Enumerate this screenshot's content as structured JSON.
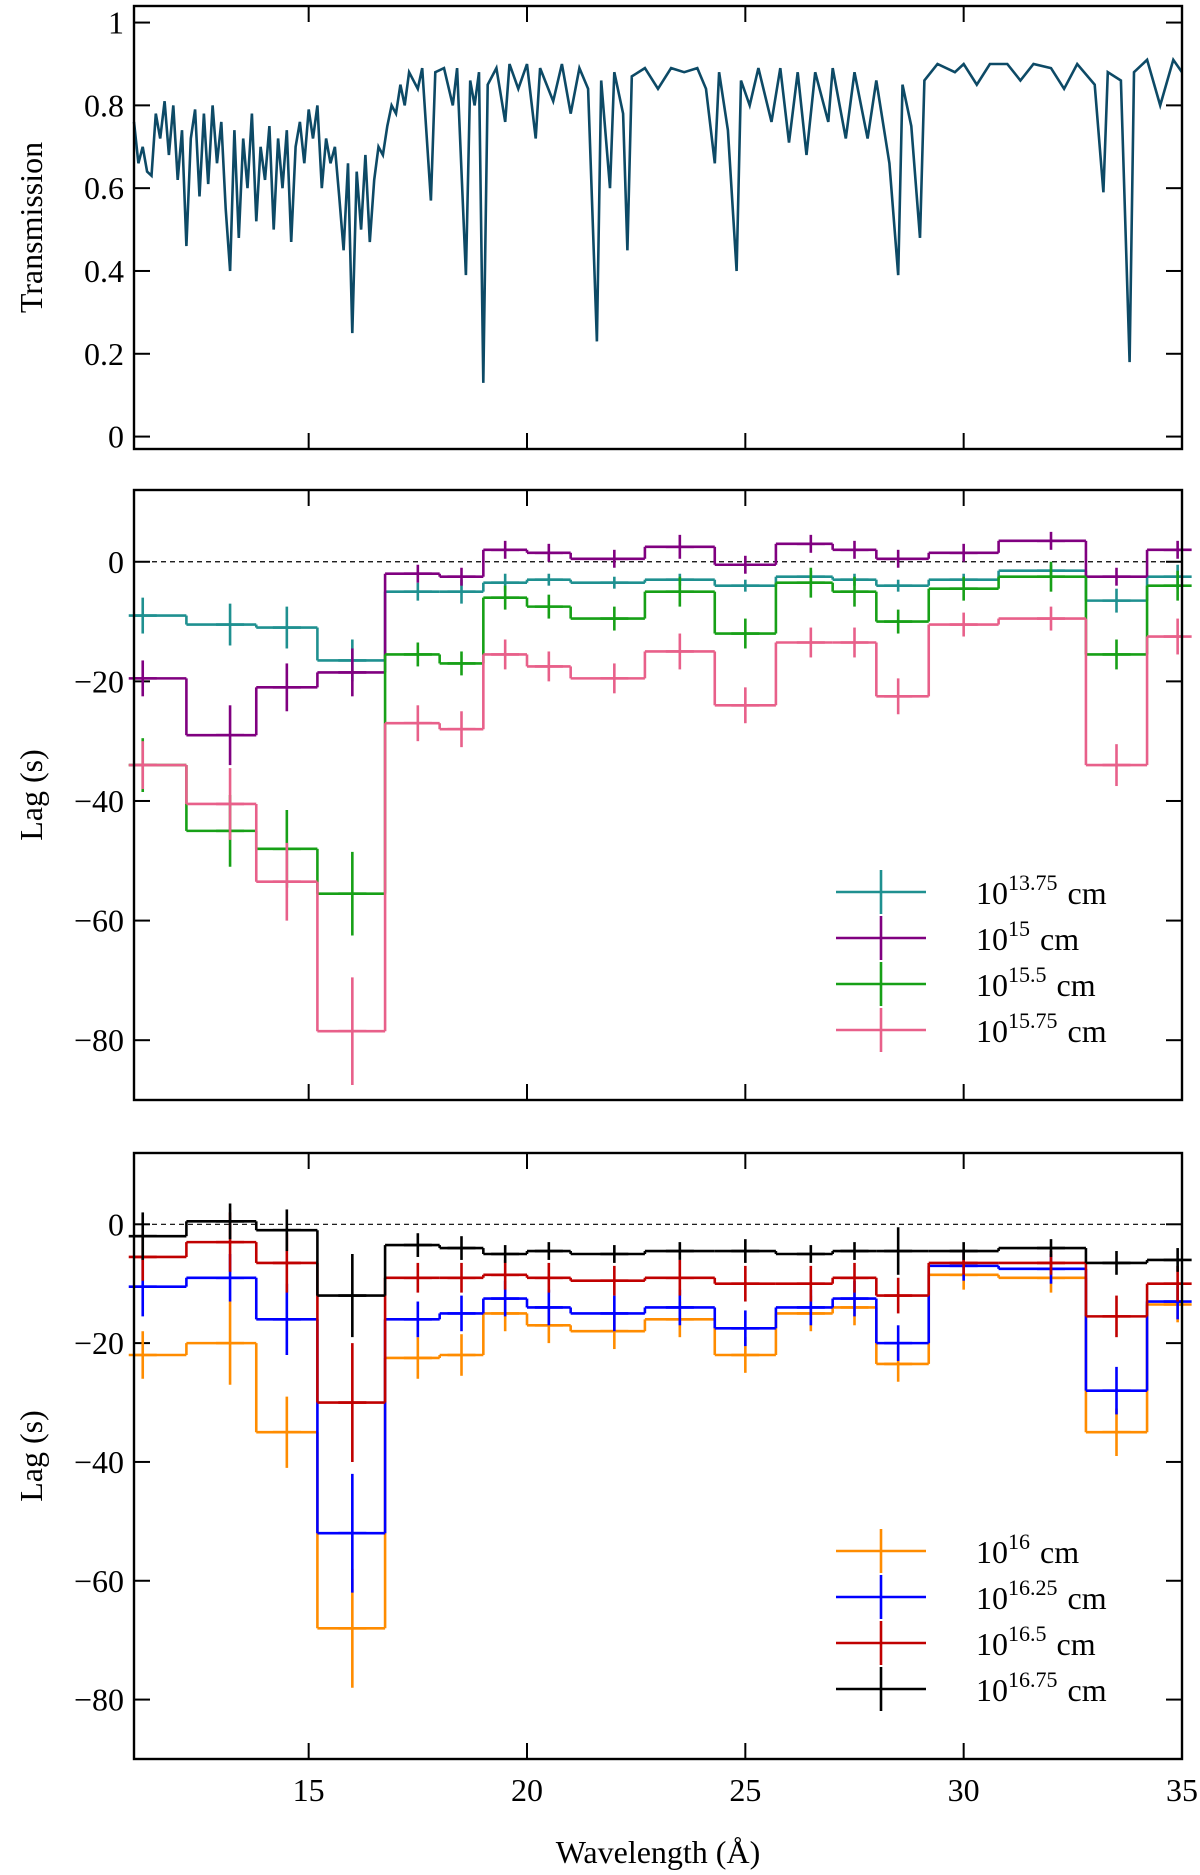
{
  "chart_data": [
    {
      "type": "line",
      "ylabel": "Transmission",
      "color": "#0d4a66",
      "xlim": [
        11,
        35
      ],
      "xticks": [
        15,
        20,
        25,
        30,
        35
      ],
      "ylim": [
        -0.03,
        1.04
      ],
      "yticks": [
        0,
        0.2,
        0.4,
        0.6,
        0.8,
        1
      ],
      "x": [
        11.0,
        11.1,
        11.2,
        11.3,
        11.4,
        11.5,
        11.6,
        11.7,
        11.8,
        11.9,
        12.0,
        12.1,
        12.2,
        12.3,
        12.4,
        12.5,
        12.6,
        12.7,
        12.8,
        12.9,
        13.0,
        13.1,
        13.2,
        13.3,
        13.4,
        13.5,
        13.6,
        13.7,
        13.8,
        13.9,
        14.0,
        14.1,
        14.2,
        14.3,
        14.4,
        14.5,
        14.6,
        14.7,
        14.8,
        14.9,
        15.0,
        15.1,
        15.2,
        15.3,
        15.4,
        15.5,
        15.6,
        15.7,
        15.8,
        15.9,
        16.0,
        16.1,
        16.2,
        16.3,
        16.4,
        16.5,
        16.6,
        16.7,
        16.8,
        16.9,
        17.0,
        17.1,
        17.2,
        17.3,
        17.5,
        17.6,
        17.8,
        17.9,
        18.1,
        18.3,
        18.4,
        18.6,
        18.7,
        18.8,
        18.9,
        19.0,
        19.1,
        19.3,
        19.5,
        19.6,
        19.8,
        20.0,
        20.2,
        20.3,
        20.6,
        20.8,
        21.0,
        21.2,
        21.4,
        21.6,
        21.7,
        21.9,
        22.0,
        22.2,
        22.3,
        22.4,
        22.7,
        23.0,
        23.3,
        23.6,
        23.9,
        24.1,
        24.3,
        24.4,
        24.6,
        24.8,
        24.9,
        25.1,
        25.3,
        25.6,
        25.8,
        26.0,
        26.2,
        26.4,
        26.6,
        26.9,
        27.0,
        27.3,
        27.5,
        27.8,
        28.0,
        28.3,
        28.5,
        28.6,
        28.8,
        29.0,
        29.1,
        29.4,
        29.8,
        30.0,
        30.3,
        30.6,
        31.0,
        31.3,
        31.6,
        32.0,
        32.3,
        32.6,
        33.0,
        33.2,
        33.3,
        33.6,
        33.8,
        33.9,
        34.2,
        34.5,
        34.8,
        35.0
      ],
      "values": [
        0.76,
        0.66,
        0.7,
        0.64,
        0.63,
        0.78,
        0.72,
        0.81,
        0.68,
        0.8,
        0.62,
        0.74,
        0.46,
        0.72,
        0.79,
        0.58,
        0.78,
        0.61,
        0.8,
        0.66,
        0.76,
        0.55,
        0.4,
        0.74,
        0.48,
        0.72,
        0.6,
        0.78,
        0.52,
        0.7,
        0.62,
        0.75,
        0.5,
        0.72,
        0.6,
        0.74,
        0.47,
        0.7,
        0.76,
        0.66,
        0.79,
        0.72,
        0.8,
        0.6,
        0.72,
        0.66,
        0.7,
        0.58,
        0.45,
        0.66,
        0.25,
        0.64,
        0.5,
        0.68,
        0.47,
        0.62,
        0.7,
        0.68,
        0.75,
        0.8,
        0.78,
        0.85,
        0.8,
        0.88,
        0.84,
        0.89,
        0.57,
        0.88,
        0.89,
        0.8,
        0.89,
        0.39,
        0.86,
        0.8,
        0.88,
        0.13,
        0.85,
        0.89,
        0.76,
        0.9,
        0.84,
        0.9,
        0.72,
        0.89,
        0.81,
        0.9,
        0.78,
        0.89,
        0.84,
        0.23,
        0.86,
        0.6,
        0.88,
        0.78,
        0.45,
        0.87,
        0.89,
        0.84,
        0.89,
        0.88,
        0.89,
        0.84,
        0.66,
        0.88,
        0.74,
        0.4,
        0.86,
        0.8,
        0.89,
        0.76,
        0.89,
        0.71,
        0.88,
        0.68,
        0.88,
        0.76,
        0.89,
        0.72,
        0.88,
        0.72,
        0.86,
        0.66,
        0.39,
        0.85,
        0.75,
        0.48,
        0.86,
        0.9,
        0.88,
        0.9,
        0.85,
        0.9,
        0.9,
        0.86,
        0.9,
        0.89,
        0.84,
        0.9,
        0.85,
        0.59,
        0.88,
        0.86,
        0.18,
        0.88,
        0.91,
        0.8,
        0.91,
        0.88
      ]
    },
    {
      "type": "step",
      "ylabel": "Lag (s)",
      "reference_line": 0,
      "legend": "lower right",
      "xlim": [
        11,
        35
      ],
      "xticks": [
        15,
        20,
        25,
        30,
        35
      ],
      "ylim": [
        -90,
        12
      ],
      "yticks": [
        {
          "value": -80,
          "label": "−80"
        },
        {
          "value": -60,
          "label": "−60"
        },
        {
          "value": -40,
          "label": "−40"
        },
        {
          "value": -20,
          "label": "−20"
        },
        0
      ],
      "bins": [
        11,
        12.2,
        13.8,
        15.2,
        16.75,
        18,
        19,
        20,
        21,
        22.7,
        24.3,
        25.7,
        27,
        28,
        29.2,
        30.8,
        32.8,
        34.2,
        35
      ],
      "x": [
        11.2,
        13.2,
        14.5,
        16,
        17.5,
        18.5,
        19.5,
        20.5,
        22,
        23.5,
        25,
        26.5,
        27.5,
        28.5,
        30,
        32,
        33.5,
        34.9
      ],
      "series": [
        {
          "name": "10",
          "exponent": "13.75",
          "unit": "cm",
          "color": "#1f9090",
          "values": [
            -9,
            -10.5,
            -11,
            -16.5,
            -5,
            -5,
            -3.5,
            -3,
            -3.5,
            -3,
            -4,
            -2.5,
            -3,
            -4,
            -3,
            -1.5,
            -6.5,
            -2.5
          ],
          "errors": [
            3,
            3.5,
            3.5,
            3.5,
            1.5,
            2,
            1.5,
            1,
            1,
            1,
            1,
            1,
            1,
            1,
            1,
            1,
            2,
            2
          ]
        },
        {
          "name": "10",
          "exponent": "15",
          "unit": "cm",
          "color": "#800080",
          "values": [
            -19.5,
            -29,
            -21,
            -18.5,
            -2,
            -2.5,
            2,
            1.5,
            0.5,
            2.5,
            -0.5,
            3,
            2,
            0.5,
            1.5,
            3.5,
            -2.5,
            2
          ],
          "errors": [
            3,
            5,
            4,
            4,
            1.5,
            1.5,
            1.5,
            1.5,
            1.5,
            2,
            1.5,
            1.5,
            1.5,
            1.5,
            1.5,
            1.5,
            1.5,
            1.5
          ]
        },
        {
          "name": "10",
          "exponent": "15.5",
          "unit": "cm",
          "color": "#17a017",
          "values": [
            -34,
            -45,
            -48,
            -55.5,
            -15.5,
            -17,
            -6,
            -7.5,
            -9.5,
            -5,
            -12,
            -3.5,
            -5,
            -10,
            -4.5,
            -2.5,
            -15.5,
            -4
          ],
          "errors": [
            4.5,
            6,
            6.5,
            7,
            2,
            2,
            2,
            2,
            2,
            2.5,
            2.5,
            2.5,
            2.5,
            2,
            2,
            2.5,
            2.5,
            2.5
          ]
        },
        {
          "name": "10",
          "exponent": "15.75",
          "unit": "cm",
          "color": "#e8608a",
          "values": [
            -34,
            -40.5,
            -53.5,
            -78.5,
            -27,
            -28,
            -15.5,
            -17.5,
            -19.5,
            -15,
            -24,
            -13.5,
            -13.5,
            -22.5,
            -10.5,
            -9.5,
            -34,
            -12.5
          ],
          "errors": [
            4,
            6,
            6.5,
            9,
            3,
            3,
            2.5,
            2.5,
            2.5,
            3,
            3,
            2.5,
            2.5,
            3,
            2,
            2,
            3.5,
            3
          ]
        }
      ]
    },
    {
      "type": "step",
      "ylabel": "Lag (s)",
      "xlabel": "Wavelength (Å)",
      "reference_line": 0,
      "legend": "lower right",
      "xlim": [
        11,
        35
      ],
      "xticks": [
        15,
        20,
        25,
        30,
        35
      ],
      "ylim": [
        -90,
        12
      ],
      "yticks": [
        {
          "value": -80,
          "label": "−80"
        },
        {
          "value": -60,
          "label": "−60"
        },
        {
          "value": -40,
          "label": "−40"
        },
        {
          "value": -20,
          "label": "−20"
        },
        0
      ],
      "bins": [
        11,
        12.2,
        13.8,
        15.2,
        16.75,
        18,
        19,
        20,
        21,
        22.7,
        24.3,
        25.7,
        27,
        28,
        29.2,
        30.8,
        32.8,
        34.2,
        35
      ],
      "x": [
        11.2,
        13.2,
        14.5,
        16,
        17.5,
        18.5,
        19.5,
        20.5,
        22,
        23.5,
        25,
        26.5,
        27.5,
        28.5,
        30,
        32,
        33.5,
        34.9
      ],
      "series": [
        {
          "name": "10",
          "exponent": "16",
          "unit": "cm",
          "color": "#ff8c00",
          "values": [
            -22,
            -20,
            -35,
            -68,
            -22.5,
            -22,
            -15,
            -17,
            -18,
            -16,
            -22,
            -15,
            -14,
            -23.5,
            -8.5,
            -9,
            -35,
            -13.5
          ],
          "errors": [
            4,
            7,
            6,
            10,
            3.5,
            3.5,
            3,
            3,
            3,
            3,
            3,
            3,
            3,
            3,
            2.5,
            2.5,
            4,
            3
          ]
        },
        {
          "name": "10",
          "exponent": "16.25",
          "unit": "cm",
          "color": "#0000ff",
          "values": [
            -10.5,
            -9,
            -16,
            -52,
            -16,
            -15,
            -12.5,
            -14,
            -15,
            -14,
            -17.5,
            -14,
            -12.5,
            -20,
            -7,
            -7.5,
            -28,
            -13
          ],
          "errors": [
            5,
            4,
            6,
            10,
            3,
            3,
            3,
            3,
            3,
            3,
            3,
            3,
            3,
            3,
            2.5,
            2.5,
            4,
            3
          ]
        },
        {
          "name": "10",
          "exponent": "16.5",
          "unit": "cm",
          "color": "#c00000",
          "values": [
            -5.5,
            -3,
            -6.5,
            -30,
            -9,
            -9,
            -8.5,
            -9,
            -9.5,
            -9,
            -10,
            -10,
            -9,
            -12,
            -6.5,
            -6.5,
            -15.5,
            -10
          ],
          "errors": [
            4,
            5,
            5,
            10,
            2.5,
            2.5,
            2.5,
            2.5,
            2.5,
            3,
            3,
            3,
            2.5,
            3,
            2,
            2,
            3.5,
            3
          ]
        },
        {
          "name": "10",
          "exponent": "16.75",
          "unit": "cm",
          "color": "#000000",
          "values": [
            -2,
            0.5,
            -1,
            -12,
            -3.5,
            -4,
            -5,
            -4.5,
            -5,
            -4.5,
            -4.5,
            -5,
            -4.5,
            -4.5,
            -4.5,
            -4,
            -6.5,
            -6
          ],
          "errors": [
            4,
            3,
            3.5,
            7,
            2,
            2,
            1.5,
            1.5,
            1.5,
            1.5,
            2,
            1.5,
            1.5,
            4,
            1.5,
            1.5,
            2,
            2
          ]
        }
      ]
    }
  ]
}
